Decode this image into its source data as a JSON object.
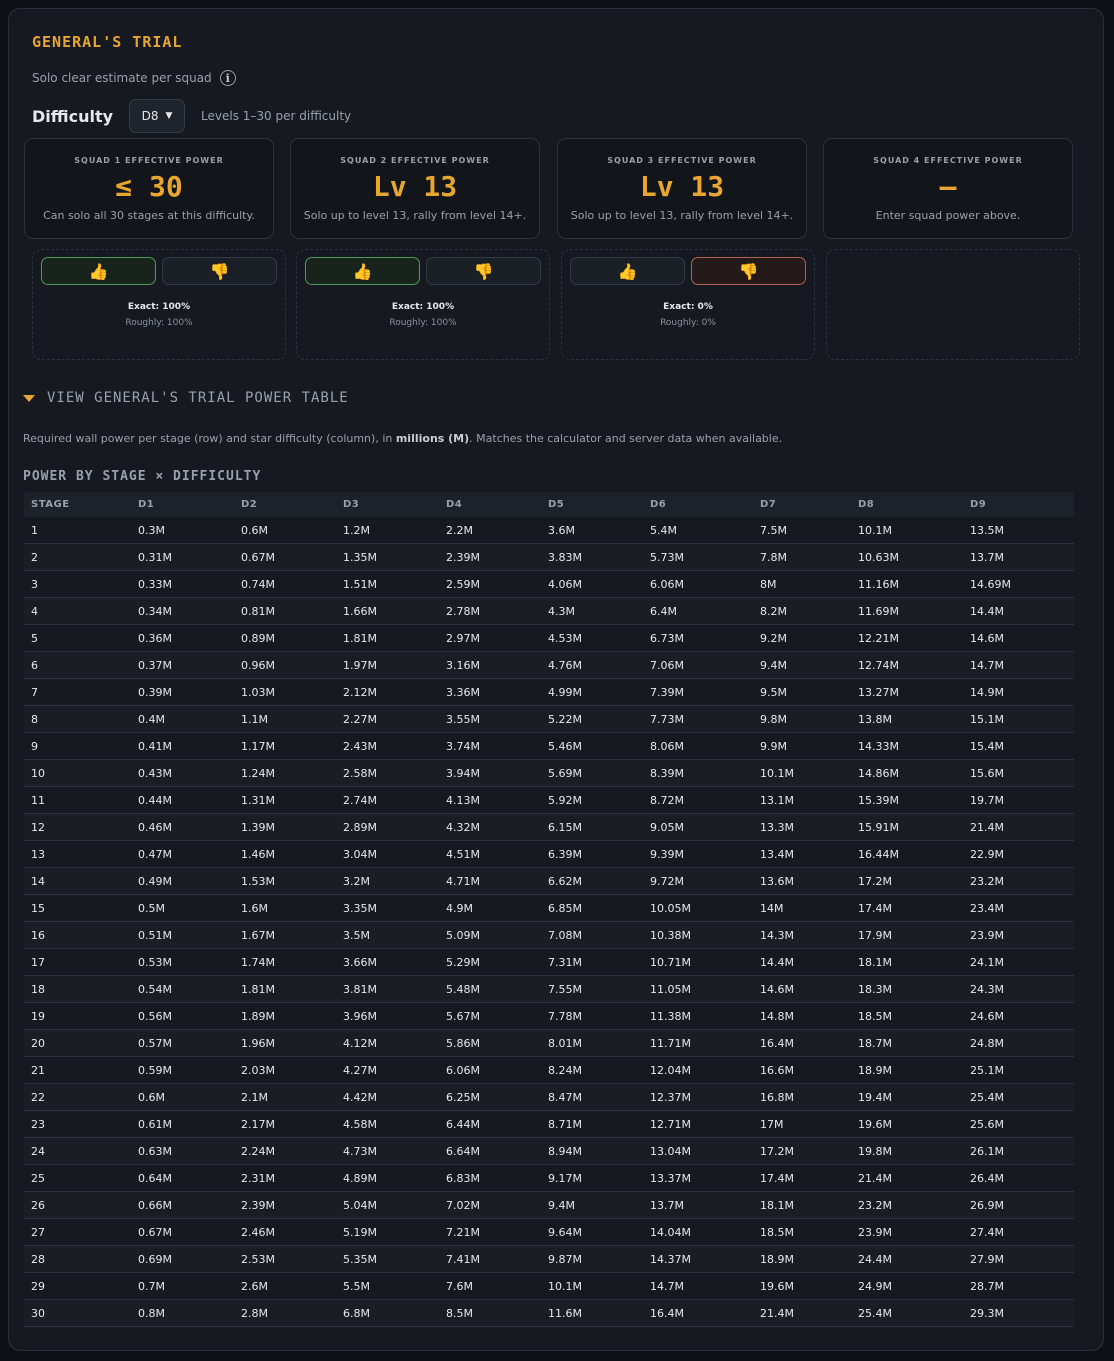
{
  "header": {
    "title": "GENERAL'S TRIAL",
    "subtitle": "Solo clear estimate per squad",
    "info_icon": "i"
  },
  "difficulty": {
    "label": "Difficulty",
    "selected": "D8",
    "hint": "Levels 1–30 per difficulty"
  },
  "squads": [
    {
      "label": "SQUAD 1 EFFECTIVE POWER",
      "value": "≤ 30",
      "desc": "Can solo all 30 stages at this difficulty."
    },
    {
      "label": "SQUAD 2 EFFECTIVE POWER",
      "value": "Lv 13",
      "desc": "Solo up to level 13, rally from level 14+."
    },
    {
      "label": "SQUAD 3 EFFECTIVE POWER",
      "value": "Lv 13",
      "desc": "Solo up to level 13, rally from level 14+."
    },
    {
      "label": "SQUAD 4 EFFECTIVE POWER",
      "value": "–",
      "desc": "Enter squad power above."
    }
  ],
  "feedback": [
    {
      "up": "👍",
      "down": "👎",
      "selected": "up",
      "exact": "Exact: 100%",
      "roughly": "Roughly: 100%"
    },
    {
      "up": "👍",
      "down": "👎",
      "selected": "up",
      "exact": "Exact: 100%",
      "roughly": "Roughly: 100%"
    },
    {
      "up": "👍",
      "down": "👎",
      "selected": "down",
      "exact": "Exact: 0%",
      "roughly": "Roughly: 0%"
    }
  ],
  "power_table": {
    "toggle_label": "VIEW GENERAL'S TRIAL POWER TABLE",
    "description_before": "Required wall power per stage (row) and star difficulty (column), in ",
    "description_bold": "millions (M)",
    "description_after": ". Matches the calculator and server data when available.",
    "title": "POWER BY STAGE × DIFFICULTY",
    "columns": [
      "STAGE",
      "D1",
      "D2",
      "D3",
      "D4",
      "D5",
      "D6",
      "D7",
      "D8",
      "D9"
    ],
    "rows": [
      [
        "1",
        "0.3M",
        "0.6M",
        "1.2M",
        "2.2M",
        "3.6M",
        "5.4M",
        "7.5M",
        "10.1M",
        "13.5M"
      ],
      [
        "2",
        "0.31M",
        "0.67M",
        "1.35M",
        "2.39M",
        "3.83M",
        "5.73M",
        "7.8M",
        "10.63M",
        "13.7M"
      ],
      [
        "3",
        "0.33M",
        "0.74M",
        "1.51M",
        "2.59M",
        "4.06M",
        "6.06M",
        "8M",
        "11.16M",
        "14.69M"
      ],
      [
        "4",
        "0.34M",
        "0.81M",
        "1.66M",
        "2.78M",
        "4.3M",
        "6.4M",
        "8.2M",
        "11.69M",
        "14.4M"
      ],
      [
        "5",
        "0.36M",
        "0.89M",
        "1.81M",
        "2.97M",
        "4.53M",
        "6.73M",
        "9.2M",
        "12.21M",
        "14.6M"
      ],
      [
        "6",
        "0.37M",
        "0.96M",
        "1.97M",
        "3.16M",
        "4.76M",
        "7.06M",
        "9.4M",
        "12.74M",
        "14.7M"
      ],
      [
        "7",
        "0.39M",
        "1.03M",
        "2.12M",
        "3.36M",
        "4.99M",
        "7.39M",
        "9.5M",
        "13.27M",
        "14.9M"
      ],
      [
        "8",
        "0.4M",
        "1.1M",
        "2.27M",
        "3.55M",
        "5.22M",
        "7.73M",
        "9.8M",
        "13.8M",
        "15.1M"
      ],
      [
        "9",
        "0.41M",
        "1.17M",
        "2.43M",
        "3.74M",
        "5.46M",
        "8.06M",
        "9.9M",
        "14.33M",
        "15.4M"
      ],
      [
        "10",
        "0.43M",
        "1.24M",
        "2.58M",
        "3.94M",
        "5.69M",
        "8.39M",
        "10.1M",
        "14.86M",
        "15.6M"
      ],
      [
        "11",
        "0.44M",
        "1.31M",
        "2.74M",
        "4.13M",
        "5.92M",
        "8.72M",
        "13.1M",
        "15.39M",
        "19.7M"
      ],
      [
        "12",
        "0.46M",
        "1.39M",
        "2.89M",
        "4.32M",
        "6.15M",
        "9.05M",
        "13.3M",
        "15.91M",
        "21.4M"
      ],
      [
        "13",
        "0.47M",
        "1.46M",
        "3.04M",
        "4.51M",
        "6.39M",
        "9.39M",
        "13.4M",
        "16.44M",
        "22.9M"
      ],
      [
        "14",
        "0.49M",
        "1.53M",
        "3.2M",
        "4.71M",
        "6.62M",
        "9.72M",
        "13.6M",
        "17.2M",
        "23.2M"
      ],
      [
        "15",
        "0.5M",
        "1.6M",
        "3.35M",
        "4.9M",
        "6.85M",
        "10.05M",
        "14M",
        "17.4M",
        "23.4M"
      ],
      [
        "16",
        "0.51M",
        "1.67M",
        "3.5M",
        "5.09M",
        "7.08M",
        "10.38M",
        "14.3M",
        "17.9M",
        "23.9M"
      ],
      [
        "17",
        "0.53M",
        "1.74M",
        "3.66M",
        "5.29M",
        "7.31M",
        "10.71M",
        "14.4M",
        "18.1M",
        "24.1M"
      ],
      [
        "18",
        "0.54M",
        "1.81M",
        "3.81M",
        "5.48M",
        "7.55M",
        "11.05M",
        "14.6M",
        "18.3M",
        "24.3M"
      ],
      [
        "19",
        "0.56M",
        "1.89M",
        "3.96M",
        "5.67M",
        "7.78M",
        "11.38M",
        "14.8M",
        "18.5M",
        "24.6M"
      ],
      [
        "20",
        "0.57M",
        "1.96M",
        "4.12M",
        "5.86M",
        "8.01M",
        "11.71M",
        "16.4M",
        "18.7M",
        "24.8M"
      ],
      [
        "21",
        "0.59M",
        "2.03M",
        "4.27M",
        "6.06M",
        "8.24M",
        "12.04M",
        "16.6M",
        "18.9M",
        "25.1M"
      ],
      [
        "22",
        "0.6M",
        "2.1M",
        "4.42M",
        "6.25M",
        "8.47M",
        "12.37M",
        "16.8M",
        "19.4M",
        "25.4M"
      ],
      [
        "23",
        "0.61M",
        "2.17M",
        "4.58M",
        "6.44M",
        "8.71M",
        "12.71M",
        "17M",
        "19.6M",
        "25.6M"
      ],
      [
        "24",
        "0.63M",
        "2.24M",
        "4.73M",
        "6.64M",
        "8.94M",
        "13.04M",
        "17.2M",
        "19.8M",
        "26.1M"
      ],
      [
        "25",
        "0.64M",
        "2.31M",
        "4.89M",
        "6.83M",
        "9.17M",
        "13.37M",
        "17.4M",
        "21.4M",
        "26.4M"
      ],
      [
        "26",
        "0.66M",
        "2.39M",
        "5.04M",
        "7.02M",
        "9.4M",
        "13.7M",
        "18.1M",
        "23.2M",
        "26.9M"
      ],
      [
        "27",
        "0.67M",
        "2.46M",
        "5.19M",
        "7.21M",
        "9.64M",
        "14.04M",
        "18.5M",
        "23.9M",
        "27.4M"
      ],
      [
        "28",
        "0.69M",
        "2.53M",
        "5.35M",
        "7.41M",
        "9.87M",
        "14.37M",
        "18.9M",
        "24.4M",
        "27.9M"
      ],
      [
        "29",
        "0.7M",
        "2.6M",
        "5.5M",
        "7.6M",
        "10.1M",
        "14.7M",
        "19.6M",
        "24.9M",
        "28.7M"
      ],
      [
        "30",
        "0.8M",
        "2.8M",
        "6.8M",
        "8.5M",
        "11.6M",
        "16.4M",
        "21.4M",
        "25.4M",
        "29.3M"
      ]
    ]
  },
  "colors": {
    "accent": "#e8a631",
    "panel": "#161a20",
    "background": "#0d1014",
    "vote_up_border": "#4e9a5b",
    "vote_down_border": "#b0614f"
  }
}
